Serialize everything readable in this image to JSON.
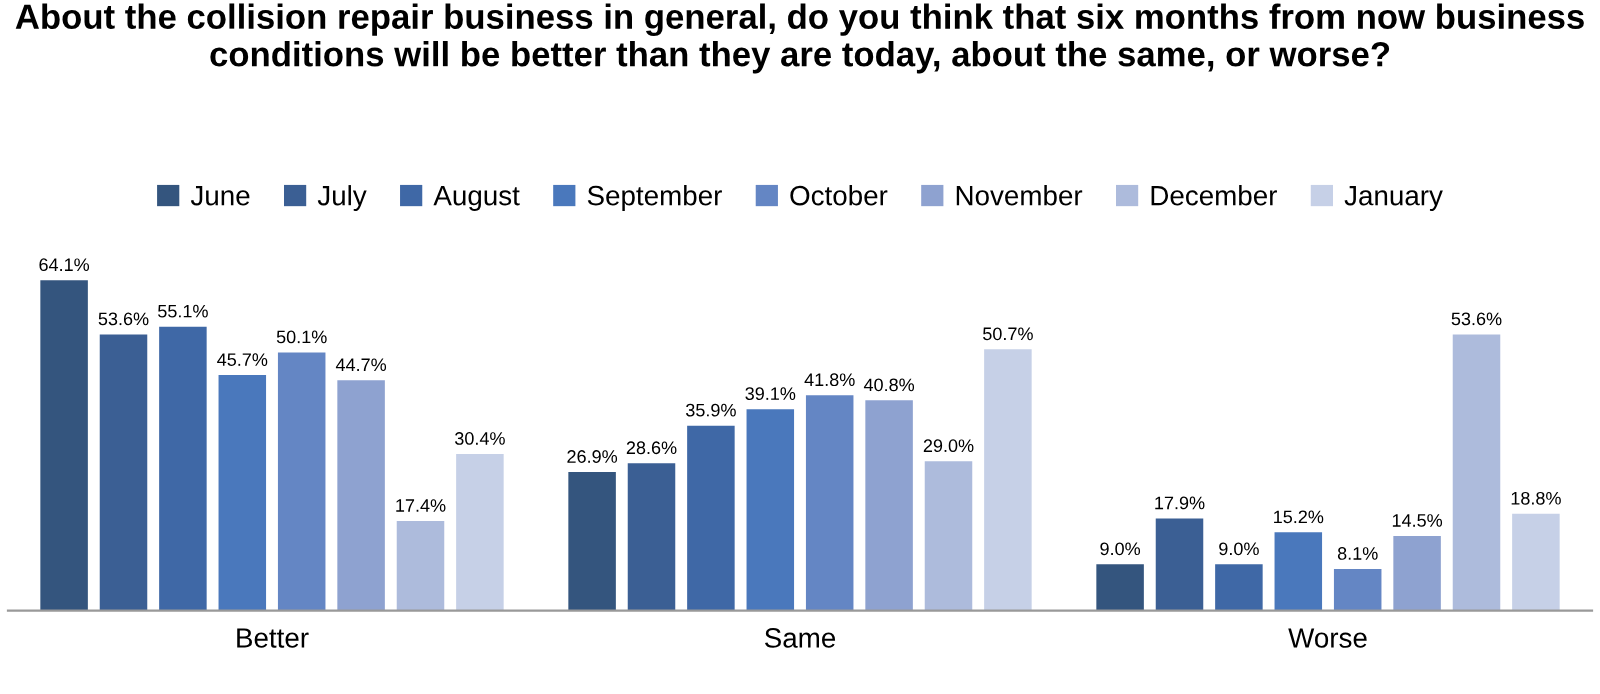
{
  "chart_data": {
    "type": "bar",
    "title": "About the collision repair business in general, do you think that six months from now business conditions will be better than they are today, about the same, or worse?",
    "categories": [
      "Better",
      "Same",
      "Worse"
    ],
    "series": [
      {
        "name": "June",
        "color": "#34557e",
        "values": [
          64.1,
          26.9,
          9.0
        ],
        "value_labels": [
          "64.1%",
          "26.9%",
          "9.0%"
        ]
      },
      {
        "name": "July",
        "color": "#3b5f94",
        "values": [
          53.6,
          28.6,
          17.9
        ],
        "value_labels": [
          "53.6%",
          "28.6%",
          "17.9%"
        ]
      },
      {
        "name": "August",
        "color": "#3f68a6",
        "values": [
          55.1,
          35.9,
          9.0
        ],
        "value_labels": [
          "55.1%",
          "35.9%",
          "9.0%"
        ]
      },
      {
        "name": "September",
        "color": "#4a78bc",
        "values": [
          45.7,
          39.1,
          15.2
        ],
        "value_labels": [
          "45.7%",
          "39.1%",
          "15.2%"
        ]
      },
      {
        "name": "October",
        "color": "#6486c4",
        "values": [
          50.1,
          41.8,
          8.1
        ],
        "value_labels": [
          "50.1%",
          "41.8%",
          "8.1%"
        ]
      },
      {
        "name": "November",
        "color": "#8ea2d0",
        "values": [
          44.7,
          40.8,
          14.5
        ],
        "value_labels": [
          "44.7%",
          "40.8%",
          "14.5%"
        ]
      },
      {
        "name": "December",
        "color": "#adbbdc",
        "values": [
          17.4,
          29.0,
          53.6
        ],
        "value_labels": [
          "17.4%",
          "29.0%",
          "53.6%"
        ]
      },
      {
        "name": "January",
        "color": "#c6d0e7",
        "values": [
          30.4,
          50.7,
          18.8
        ],
        "value_labels": [
          "30.4%",
          "50.7%",
          "18.8%"
        ]
      }
    ],
    "legend": "top",
    "grid": false
  }
}
